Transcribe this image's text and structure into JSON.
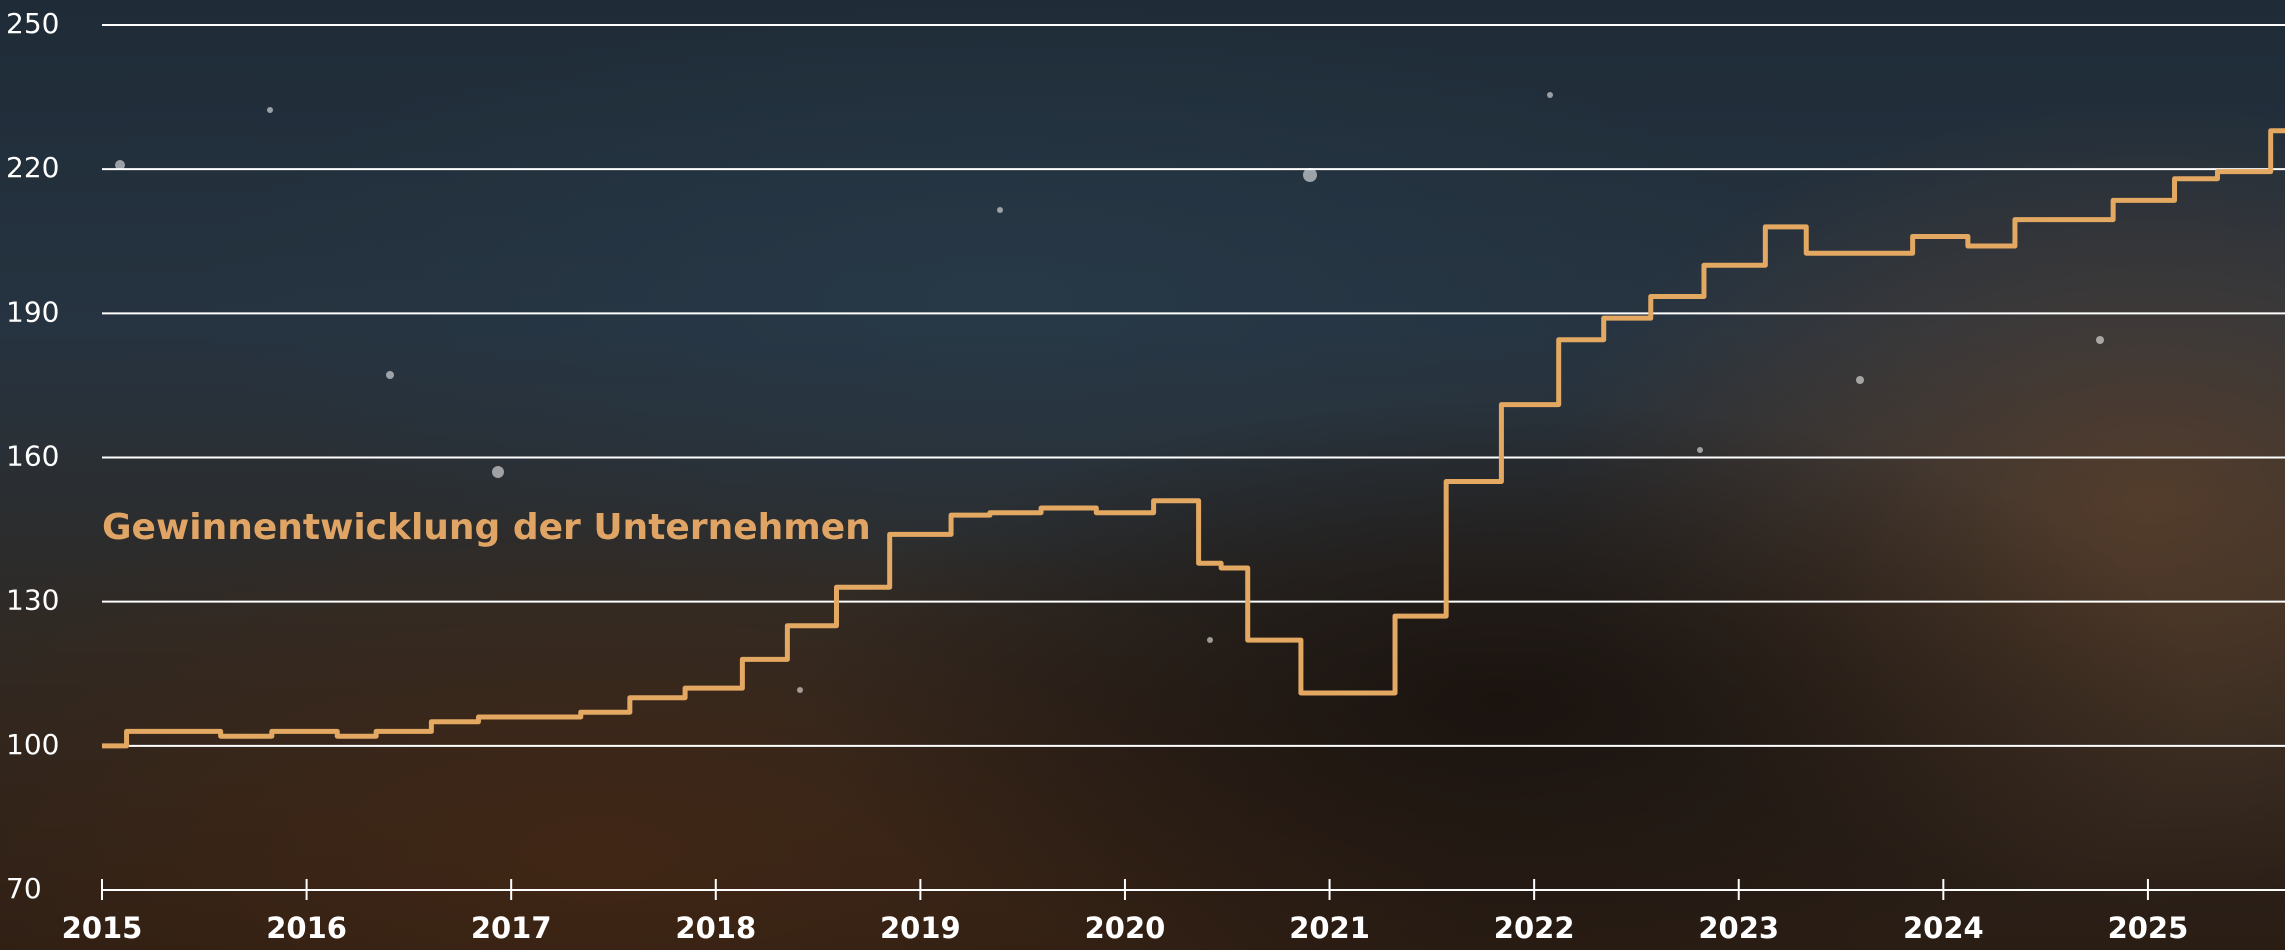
{
  "chart_data": {
    "type": "line",
    "annotation": "Gewinnentwicklung der Unternehmen",
    "xlim": [
      2015,
      2025.67
    ],
    "xticks": [
      2015,
      2016,
      2017,
      2018,
      2019,
      2020,
      2021,
      2022,
      2023,
      2024,
      2025
    ],
    "ylim": [
      70,
      250
    ],
    "yticks": [
      70,
      100,
      130,
      160,
      190,
      220,
      250
    ],
    "grid": true,
    "series": [
      {
        "color": "#e3a862",
        "x": [
          2015,
          2015.12,
          2015.12,
          2015.58,
          2015.58,
          2015.83,
          2015.83,
          2016.15,
          2016.15,
          2016.34,
          2016.34,
          2016.61,
          2016.61,
          2016.84,
          2016.84,
          2017.34,
          2017.34,
          2017.58,
          2017.58,
          2017.85,
          2017.85,
          2018.13,
          2018.13,
          2018.35,
          2018.35,
          2018.59,
          2018.59,
          2018.85,
          2018.85,
          2019.15,
          2019.15,
          2019.34,
          2019.34,
          2019.59,
          2019.59,
          2019.86,
          2019.86,
          2020.14,
          2020.14,
          2020.36,
          2020.36,
          2020.47,
          2020.47,
          2020.6,
          2020.6,
          2020.86,
          2020.86,
          2021.32,
          2021.32,
          2021.57,
          2021.57,
          2021.84,
          2021.84,
          2022.12,
          2022.12,
          2022.34,
          2022.34,
          2022.57,
          2022.57,
          2022.83,
          2022.83,
          2023.13,
          2023.13,
          2023.33,
          2023.33,
          2023.85,
          2023.85,
          2024.12,
          2024.12,
          2024.35,
          2024.35,
          2024.83,
          2024.83,
          2025.13,
          2025.13,
          2025.34,
          2025.34,
          2025.6,
          2025.6,
          2025.67
        ],
        "values": [
          100,
          100,
          103,
          103,
          102,
          102,
          103,
          103,
          102,
          102,
          103,
          103,
          105,
          105,
          106,
          106,
          107,
          107,
          110,
          110,
          112,
          112,
          118,
          118,
          125,
          125,
          133,
          133,
          144,
          144,
          148,
          148,
          148.5,
          148.5,
          149.5,
          149.5,
          148.5,
          148.5,
          151,
          151,
          138,
          138,
          137,
          137,
          122,
          122,
          111,
          111,
          127,
          127,
          155,
          155,
          171,
          171,
          184.5,
          184.5,
          189,
          189,
          193.5,
          193.5,
          200,
          200,
          208,
          208,
          202.5,
          202.5,
          206,
          206,
          204,
          204,
          209.5,
          209.5,
          213.5,
          213.5,
          218,
          218,
          219.5,
          219.5,
          228,
          228
        ]
      }
    ]
  }
}
